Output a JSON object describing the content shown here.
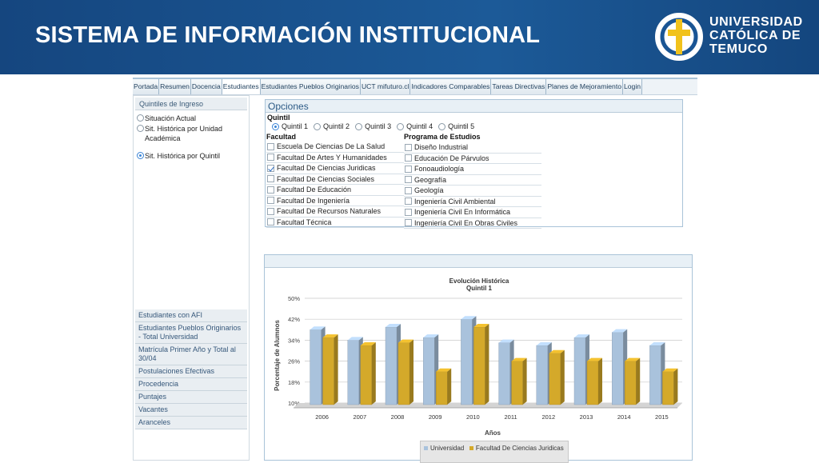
{
  "header": {
    "title": "SISTEMA DE INFORMACIÓN INSTITUCIONAL",
    "logo_lines": [
      "UNIVERSIDAD",
      "CATÓLICA DE",
      "TEMUCO"
    ],
    "bg_color": "#1a5594"
  },
  "nav": [
    {
      "label": "Portada",
      "active": false
    },
    {
      "label": "Resumen",
      "active": false
    },
    {
      "label": "Docencia",
      "active": false
    },
    {
      "label": "Estudiantes",
      "active": true
    },
    {
      "label": "Estudiantes Pueblos Originarios",
      "active": false
    },
    {
      "label": "UCT mifuturo.cl",
      "active": false
    },
    {
      "label": "Indicadores Comparables",
      "active": false
    },
    {
      "label": "Tareas Directivas",
      "active": false
    },
    {
      "label": "Planes de Mejoramiento",
      "active": false
    },
    {
      "label": "Login",
      "active": false
    }
  ],
  "sidebar": {
    "section_title": "Quintiles de Ingreso",
    "radios": [
      {
        "label": "Situación Actual",
        "checked": false
      },
      {
        "label": "Sit. Histórica por Unidad Académica",
        "checked": false
      },
      {
        "label": "Sit. Histórica por Quintil",
        "checked": true
      }
    ],
    "links": [
      "Estudiantes con AFI",
      "Estudiantes Pueblos Originarios - Total Universidad",
      "Matrícula Primer Año y Total al 30/04",
      "Postulaciones Efectivas",
      "Procedencia",
      "Puntajes",
      "Vacantes",
      "Aranceles"
    ]
  },
  "options": {
    "title": "Opciones",
    "quintil_label": "Quintil",
    "quintiles": [
      {
        "label": "Quintil 1",
        "checked": true
      },
      {
        "label": "Quintil 2",
        "checked": false
      },
      {
        "label": "Quintil 3",
        "checked": false
      },
      {
        "label": "Quintil 4",
        "checked": false
      },
      {
        "label": "Quintil 5",
        "checked": false
      }
    ],
    "facultad_label": "Facultad",
    "facultades": [
      {
        "label": "Escuela De Ciencias De La Salud",
        "checked": false
      },
      {
        "label": "Facultad De Artes Y Humanidades",
        "checked": false
      },
      {
        "label": "Facultad De Ciencias Juridicas",
        "checked": true
      },
      {
        "label": "Facultad De Ciencias Sociales",
        "checked": false
      },
      {
        "label": "Facultad De Educación",
        "checked": false
      },
      {
        "label": "Facultad De Ingeniería",
        "checked": false
      },
      {
        "label": "Facultad De Recursos Naturales",
        "checked": false
      },
      {
        "label": "Facultad Técnica",
        "checked": false
      }
    ],
    "programa_label": "Programa de Estudios",
    "programas": [
      {
        "label": "Diseño Industrial",
        "checked": false
      },
      {
        "label": "Educación De Párvulos",
        "checked": false
      },
      {
        "label": "Fonoaudiología",
        "checked": false
      },
      {
        "label": "Geografía",
        "checked": false
      },
      {
        "label": "Geología",
        "checked": false
      },
      {
        "label": "Ingeniería Civil Ambiental",
        "checked": false
      },
      {
        "label": "Ingeniería Civil En Informática",
        "checked": false
      },
      {
        "label": "Ingeniería Civil En Obras Civiles",
        "checked": false
      }
    ]
  },
  "chart_data": {
    "type": "bar",
    "title": "Evolución Histórica",
    "subtitle": "Quintil 1",
    "xlabel": "Años",
    "ylabel": "Porcentaje de Alumnos",
    "categories": [
      "2006",
      "2007",
      "2008",
      "2009",
      "2010",
      "2011",
      "2012",
      "2013",
      "2014",
      "2015"
    ],
    "y_ticks": [
      "10%",
      "18%",
      "26%",
      "34%",
      "42%",
      "50%"
    ],
    "ylim": [
      10,
      50
    ],
    "grid": true,
    "legend_position": "bottom",
    "series": [
      {
        "name": "Universidad",
        "color": "#a9c2dc",
        "values": [
          38,
          34,
          39,
          35,
          42,
          33,
          32,
          35,
          37,
          32
        ]
      },
      {
        "name": "Facultad De Ciencias Juridicas",
        "color": "#d4a92a",
        "values": [
          35,
          32,
          33,
          22,
          39,
          26,
          29,
          26,
          26,
          22
        ]
      }
    ]
  }
}
